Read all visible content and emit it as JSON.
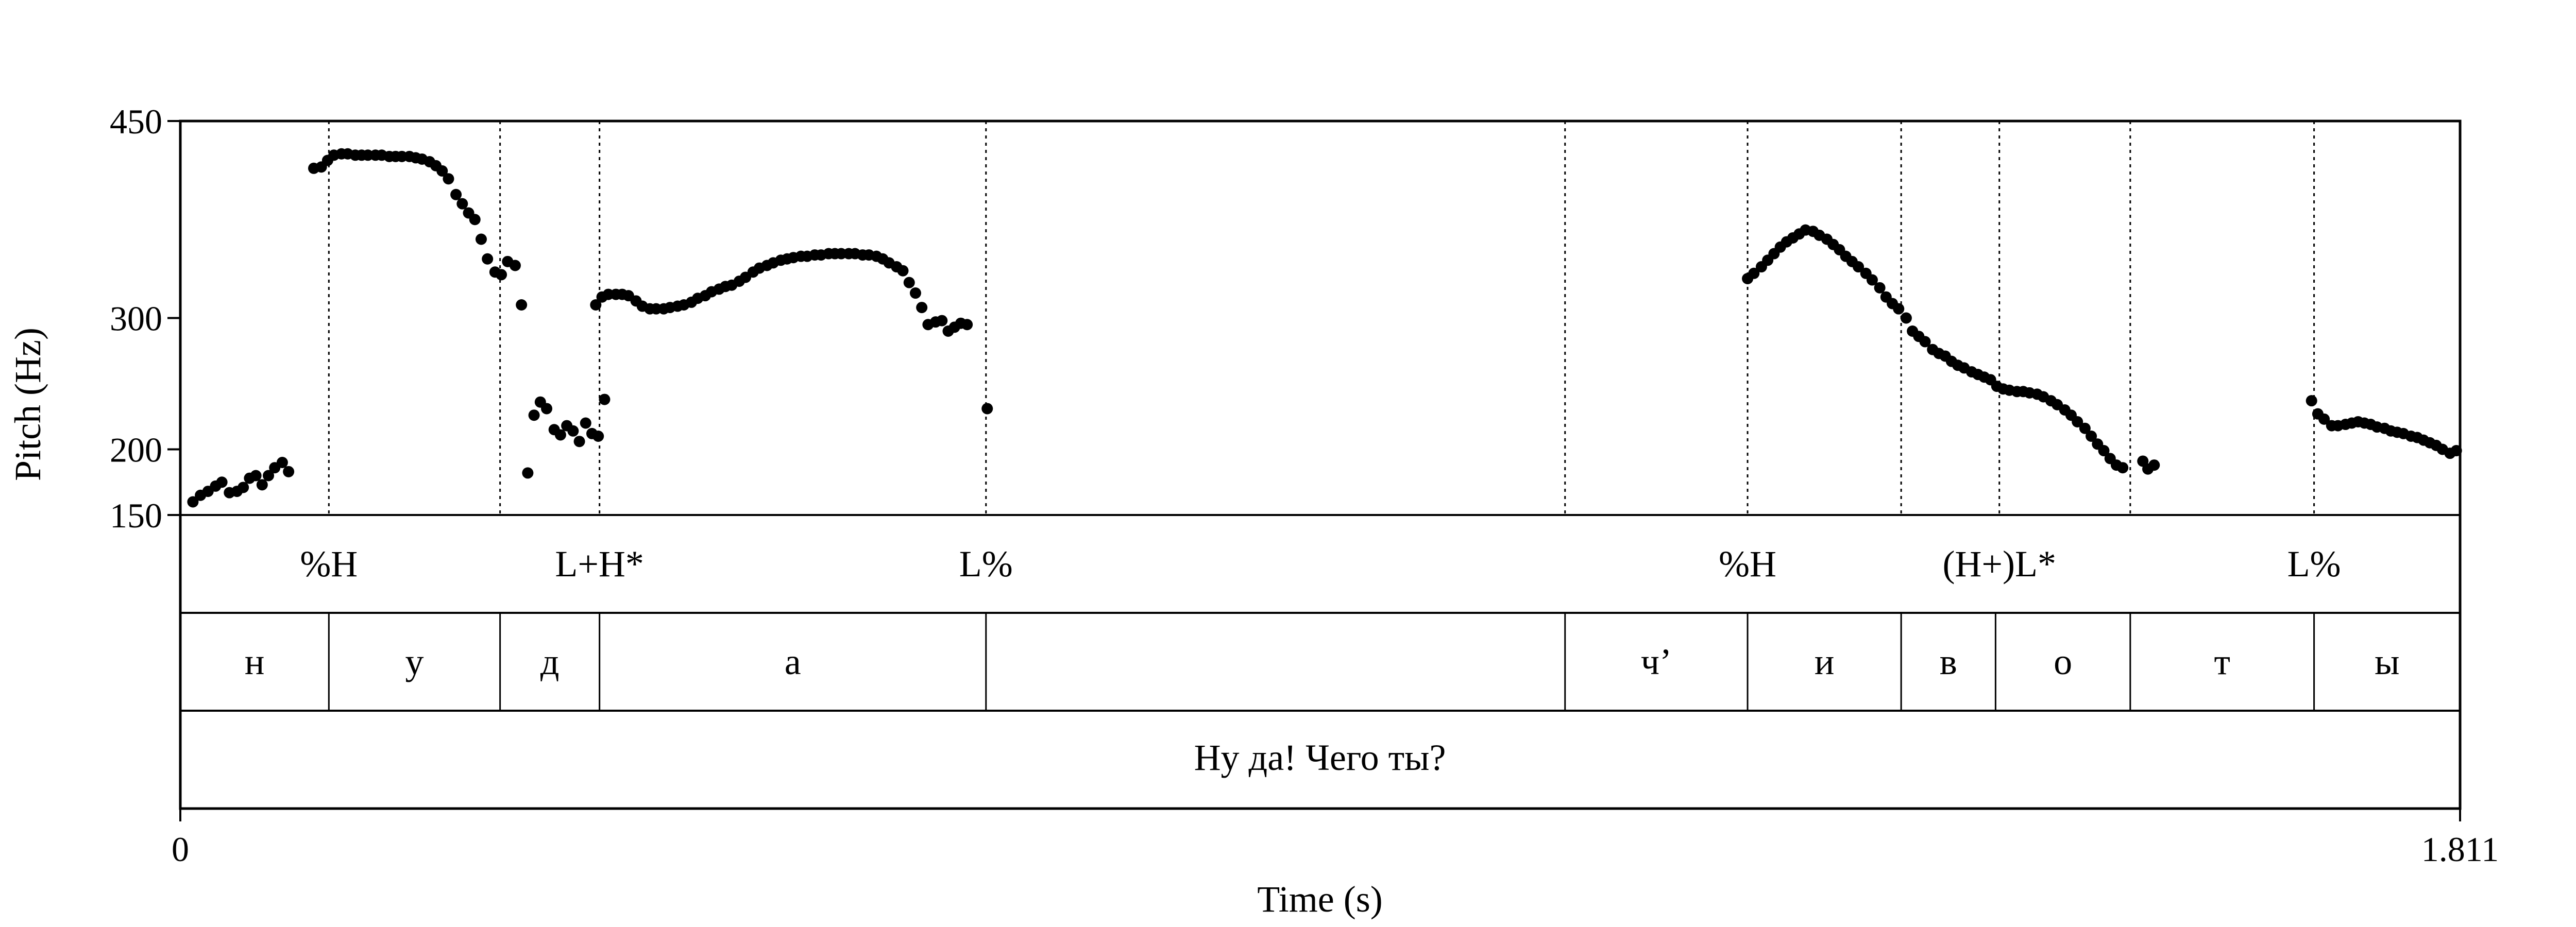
{
  "chart_data": {
    "type": "scatter",
    "xlabel": "Time (s)",
    "ylabel": "Pitch (Hz)",
    "xlim": [
      0,
      1.811
    ],
    "ylim": [
      150,
      450
    ],
    "x_tick_labels": [
      "0",
      "1.811"
    ],
    "y_ticks": [
      150,
      200,
      300,
      450
    ],
    "y_tick_labels": [
      "150",
      "200",
      "300",
      "450"
    ],
    "grid": false,
    "legend": "none",
    "point_color": "#000000",
    "tone_tier": [
      {
        "label": "%H",
        "t": 0.118
      },
      {
        "label": "L+H*",
        "t": 0.333
      },
      {
        "label": "L%",
        "t": 0.64
      },
      {
        "label": "%H",
        "t": 1.245
      },
      {
        "label": "(H+)L*",
        "t": 1.445
      },
      {
        "label": "L%",
        "t": 1.695
      }
    ],
    "tone_extra_boundaries": [
      0.254,
      1.1,
      1.367,
      1.549
    ],
    "segment_tier": [
      {
        "label": "н",
        "start": 0.0,
        "end": 0.118
      },
      {
        "label": "у",
        "start": 0.118,
        "end": 0.254
      },
      {
        "label": "д",
        "start": 0.254,
        "end": 0.333
      },
      {
        "label": "а",
        "start": 0.333,
        "end": 0.64
      },
      {
        "label": "",
        "start": 0.64,
        "end": 1.1
      },
      {
        "label": "ч’",
        "start": 1.1,
        "end": 1.245
      },
      {
        "label": "и",
        "start": 1.245,
        "end": 1.367
      },
      {
        "label": "в",
        "start": 1.367,
        "end": 1.442
      },
      {
        "label": "о",
        "start": 1.442,
        "end": 1.549
      },
      {
        "label": "т",
        "start": 1.549,
        "end": 1.695
      },
      {
        "label": "ы",
        "start": 1.695,
        "end": 1.811
      }
    ],
    "sentence_tier": "Ну да! Чего ты?",
    "points": [
      [
        0.01,
        160
      ],
      [
        0.016,
        165
      ],
      [
        0.022,
        168
      ],
      [
        0.028,
        172
      ],
      [
        0.033,
        175
      ],
      [
        0.039,
        167
      ],
      [
        0.045,
        168
      ],
      [
        0.05,
        171
      ],
      [
        0.055,
        178
      ],
      [
        0.06,
        180
      ],
      [
        0.065,
        173
      ],
      [
        0.07,
        180
      ],
      [
        0.075,
        186
      ],
      [
        0.081,
        190
      ],
      [
        0.086,
        183
      ],
      [
        0.106,
        414
      ],
      [
        0.112,
        415
      ],
      [
        0.117,
        420
      ],
      [
        0.122,
        424
      ],
      [
        0.128,
        425
      ],
      [
        0.133,
        425
      ],
      [
        0.139,
        424
      ],
      [
        0.144,
        424
      ],
      [
        0.149,
        424
      ],
      [
        0.155,
        424
      ],
      [
        0.16,
        424
      ],
      [
        0.166,
        423
      ],
      [
        0.171,
        423
      ],
      [
        0.176,
        423
      ],
      [
        0.182,
        423
      ],
      [
        0.187,
        422
      ],
      [
        0.192,
        421
      ],
      [
        0.198,
        419
      ],
      [
        0.203,
        416
      ],
      [
        0.208,
        412
      ],
      [
        0.213,
        406
      ],
      [
        0.219,
        394
      ],
      [
        0.224,
        387
      ],
      [
        0.229,
        380
      ],
      [
        0.234,
        375
      ],
      [
        0.239,
        360
      ],
      [
        0.244,
        345
      ],
      [
        0.25,
        335
      ],
      [
        0.255,
        333
      ],
      [
        0.26,
        343
      ],
      [
        0.266,
        340
      ],
      [
        0.271,
        310
      ],
      [
        0.276,
        182
      ],
      [
        0.281,
        226
      ],
      [
        0.286,
        236
      ],
      [
        0.291,
        231
      ],
      [
        0.297,
        215
      ],
      [
        0.302,
        211
      ],
      [
        0.307,
        218
      ],
      [
        0.312,
        214
      ],
      [
        0.317,
        206
      ],
      [
        0.322,
        220
      ],
      [
        0.327,
        212
      ],
      [
        0.332,
        210
      ],
      [
        0.337,
        238
      ],
      [
        0.33,
        310
      ],
      [
        0.335,
        316
      ],
      [
        0.34,
        318
      ],
      [
        0.346,
        318
      ],
      [
        0.351,
        318
      ],
      [
        0.356,
        317
      ],
      [
        0.362,
        313
      ],
      [
        0.367,
        309
      ],
      [
        0.373,
        307
      ],
      [
        0.378,
        307
      ],
      [
        0.384,
        307
      ],
      [
        0.389,
        308
      ],
      [
        0.395,
        309
      ],
      [
        0.4,
        310
      ],
      [
        0.406,
        312
      ],
      [
        0.411,
        315
      ],
      [
        0.417,
        317
      ],
      [
        0.422,
        320
      ],
      [
        0.428,
        322
      ],
      [
        0.433,
        324
      ],
      [
        0.438,
        325
      ],
      [
        0.444,
        328
      ],
      [
        0.449,
        331
      ],
      [
        0.455,
        335
      ],
      [
        0.46,
        338
      ],
      [
        0.466,
        340
      ],
      [
        0.471,
        342
      ],
      [
        0.477,
        344
      ],
      [
        0.482,
        345
      ],
      [
        0.487,
        346
      ],
      [
        0.493,
        347
      ],
      [
        0.498,
        347
      ],
      [
        0.504,
        348
      ],
      [
        0.509,
        348
      ],
      [
        0.515,
        349
      ],
      [
        0.52,
        349
      ],
      [
        0.525,
        349
      ],
      [
        0.531,
        349
      ],
      [
        0.536,
        349
      ],
      [
        0.542,
        348
      ],
      [
        0.547,
        348
      ],
      [
        0.553,
        347
      ],
      [
        0.558,
        345
      ],
      [
        0.563,
        342
      ],
      [
        0.569,
        339
      ],
      [
        0.574,
        336
      ],
      [
        0.579,
        327
      ],
      [
        0.584,
        319
      ],
      [
        0.589,
        308
      ],
      [
        0.594,
        295
      ],
      [
        0.6,
        297
      ],
      [
        0.605,
        298
      ],
      [
        0.61,
        290
      ],
      [
        0.615,
        293
      ],
      [
        0.62,
        296
      ],
      [
        0.625,
        295
      ],
      [
        0.641,
        231
      ],
      [
        1.245,
        330
      ],
      [
        1.25,
        334
      ],
      [
        1.256,
        339
      ],
      [
        1.261,
        344
      ],
      [
        1.266,
        349
      ],
      [
        1.271,
        354
      ],
      [
        1.276,
        358
      ],
      [
        1.281,
        361
      ],
      [
        1.286,
        364
      ],
      [
        1.291,
        367
      ],
      [
        1.297,
        366
      ],
      [
        1.302,
        363
      ],
      [
        1.308,
        360
      ],
      [
        1.313,
        356
      ],
      [
        1.318,
        352
      ],
      [
        1.323,
        347
      ],
      [
        1.328,
        343
      ],
      [
        1.333,
        339
      ],
      [
        1.339,
        334
      ],
      [
        1.344,
        329
      ],
      [
        1.35,
        323
      ],
      [
        1.355,
        316
      ],
      [
        1.36,
        311
      ],
      [
        1.365,
        307
      ],
      [
        1.371,
        300
      ],
      [
        1.376,
        290
      ],
      [
        1.381,
        286
      ],
      [
        1.386,
        282
      ],
      [
        1.392,
        276
      ],
      [
        1.397,
        273
      ],
      [
        1.402,
        271
      ],
      [
        1.407,
        267
      ],
      [
        1.412,
        264
      ],
      [
        1.417,
        262
      ],
      [
        1.423,
        259
      ],
      [
        1.428,
        257
      ],
      [
        1.433,
        255
      ],
      [
        1.438,
        253
      ],
      [
        1.443,
        248
      ],
      [
        1.448,
        246
      ],
      [
        1.453,
        245
      ],
      [
        1.459,
        244
      ],
      [
        1.464,
        244
      ],
      [
        1.469,
        243
      ],
      [
        1.475,
        242
      ],
      [
        1.48,
        240
      ],
      [
        1.486,
        237
      ],
      [
        1.491,
        234
      ],
      [
        1.497,
        230
      ],
      [
        1.502,
        226
      ],
      [
        1.507,
        221
      ],
      [
        1.513,
        216
      ],
      [
        1.518,
        210
      ],
      [
        1.523,
        204
      ],
      [
        1.528,
        199
      ],
      [
        1.533,
        193
      ],
      [
        1.538,
        188
      ],
      [
        1.543,
        186
      ],
      [
        1.559,
        191
      ],
      [
        1.563,
        185
      ],
      [
        1.568,
        188
      ],
      [
        1.693,
        237
      ],
      [
        1.698,
        227
      ],
      [
        1.703,
        223
      ],
      [
        1.709,
        218
      ],
      [
        1.714,
        218
      ],
      [
        1.72,
        219
      ],
      [
        1.725,
        220
      ],
      [
        1.73,
        221
      ],
      [
        1.735,
        220
      ],
      [
        1.74,
        219
      ],
      [
        1.745,
        217
      ],
      [
        1.751,
        216
      ],
      [
        1.756,
        214
      ],
      [
        1.761,
        213
      ],
      [
        1.766,
        212
      ],
      [
        1.772,
        210
      ],
      [
        1.777,
        209
      ],
      [
        1.782,
        207
      ],
      [
        1.787,
        205
      ],
      [
        1.792,
        203
      ],
      [
        1.797,
        200
      ],
      [
        1.803,
        197
      ],
      [
        1.808,
        199
      ]
    ]
  }
}
